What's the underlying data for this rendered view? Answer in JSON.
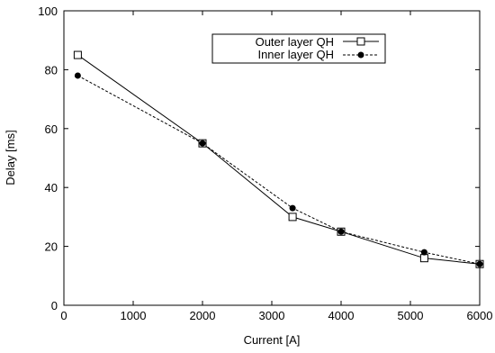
{
  "chart_data": {
    "type": "line",
    "title": "",
    "xlabel": "Current [A]",
    "ylabel": "Delay [ms]",
    "xlim": [
      0,
      6000
    ],
    "ylim": [
      0,
      100
    ],
    "x_ticks": [
      0,
      1000,
      2000,
      3000,
      4000,
      5000,
      6000
    ],
    "y_ticks": [
      0,
      20,
      40,
      60,
      80,
      100
    ],
    "x_tick_labels": [
      "0",
      "1000",
      "2000",
      "3000",
      "4000",
      "5000",
      "6000"
    ],
    "y_tick_labels": [
      "0",
      "20",
      "40",
      "60",
      "80",
      "100"
    ],
    "grid": false,
    "legend_position": "top-right",
    "series": [
      {
        "name": "Outer layer QH",
        "line_style": "solid",
        "marker": "open-square",
        "color": "#000000",
        "x": [
          200,
          2000,
          3300,
          4000,
          5200,
          6000
        ],
        "y": [
          85,
          55,
          30,
          25,
          16,
          14
        ]
      },
      {
        "name": "Inner layer QH",
        "line_style": "dashed",
        "marker": "filled-circle",
        "color": "#000000",
        "x": [
          200,
          2000,
          3300,
          4000,
          5200,
          6000
        ],
        "y": [
          78,
          55,
          33,
          25,
          18,
          14
        ]
      }
    ]
  }
}
